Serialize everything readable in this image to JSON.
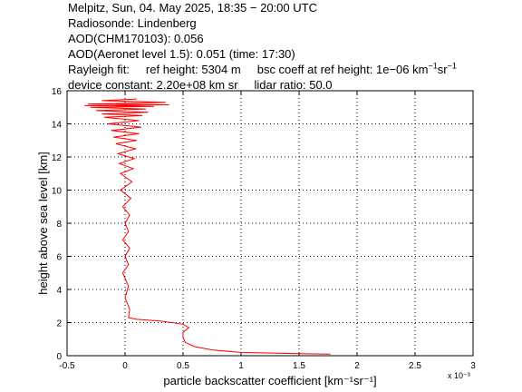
{
  "header": {
    "line1": "Melpitz, Sun, 04. May 2025, 18:35 − 20:00 UTC",
    "line2": "Radiosonde: Lindenberg",
    "line3": "AOD(CHM170103): 0.056",
    "line4": "AOD(Aeronet level 1.5): 0.051   (time: 17:30)",
    "rayleigh_label": "Rayleigh fit:",
    "ref_height": "ref height: 5304 m",
    "bsc_coeff": "bsc coeff at ref height: 1e−06 km",
    "bsc_unit_exp1": "−1",
    "bsc_unit_sr": "sr",
    "bsc_unit_exp2": "−1",
    "device_constant": "device constant: 2.20e+08 km sr",
    "lidar_ratio": "lidar ratio: 50.0"
  },
  "chart_data": {
    "type": "line",
    "xlabel": "particle backscatter coefficient [km⁻¹sr⁻¹]",
    "ylabel": "height above sea level [km]",
    "x_multiplier": "x 10⁻³",
    "xlim": [
      -0.5,
      3
    ],
    "ylim": [
      0,
      16
    ],
    "xticks": [
      "-0.5",
      "0",
      "0.5",
      "1",
      "1.5",
      "2",
      "2.5",
      "3"
    ],
    "yticks": [
      "0",
      "2",
      "4",
      "6",
      "8",
      "10",
      "12",
      "14",
      "16"
    ],
    "grid": true,
    "series": [
      {
        "color": "#ff0000",
        "x": [
          1.77,
          1.5,
          1.0,
          0.75,
          0.6,
          0.52,
          0.5,
          0.5,
          0.55,
          0.5,
          0.3,
          0.1,
          0.03,
          0.04,
          0.0,
          0.03,
          -0.02,
          0.03,
          0.0,
          0.04,
          -0.02,
          0.03,
          0.0,
          0.04,
          -0.02,
          0.05,
          -0.04,
          0.06,
          -0.04,
          0.07,
          -0.05,
          0.08,
          -0.06,
          0.09,
          -0.08,
          0.1,
          -0.1,
          0.12,
          -0.12,
          0.14,
          -0.15,
          0.12,
          -0.18,
          0.15,
          -0.2,
          0.2,
          -0.25,
          0.18,
          -0.3,
          0.25,
          -0.35,
          0.38,
          -0.32,
          0.35,
          -0.2,
          0.1
        ],
        "y": [
          0.1,
          0.12,
          0.2,
          0.35,
          0.55,
          0.8,
          1.1,
          1.4,
          1.7,
          1.9,
          2.1,
          2.2,
          2.3,
          2.8,
          3.5,
          4.2,
          5.0,
          5.5,
          6.0,
          6.5,
          7.0,
          7.5,
          8.0,
          8.5,
          9.0,
          9.5,
          10.0,
          10.5,
          11.0,
          11.3,
          11.6,
          11.9,
          12.2,
          12.5,
          12.8,
          13.0,
          13.2,
          13.4,
          13.6,
          13.8,
          14.0,
          14.2,
          14.4,
          14.5,
          14.6,
          14.7,
          14.8,
          14.9,
          15.0,
          15.05,
          15.1,
          15.15,
          15.2,
          15.3,
          15.4,
          15.5
        ]
      }
    ]
  }
}
